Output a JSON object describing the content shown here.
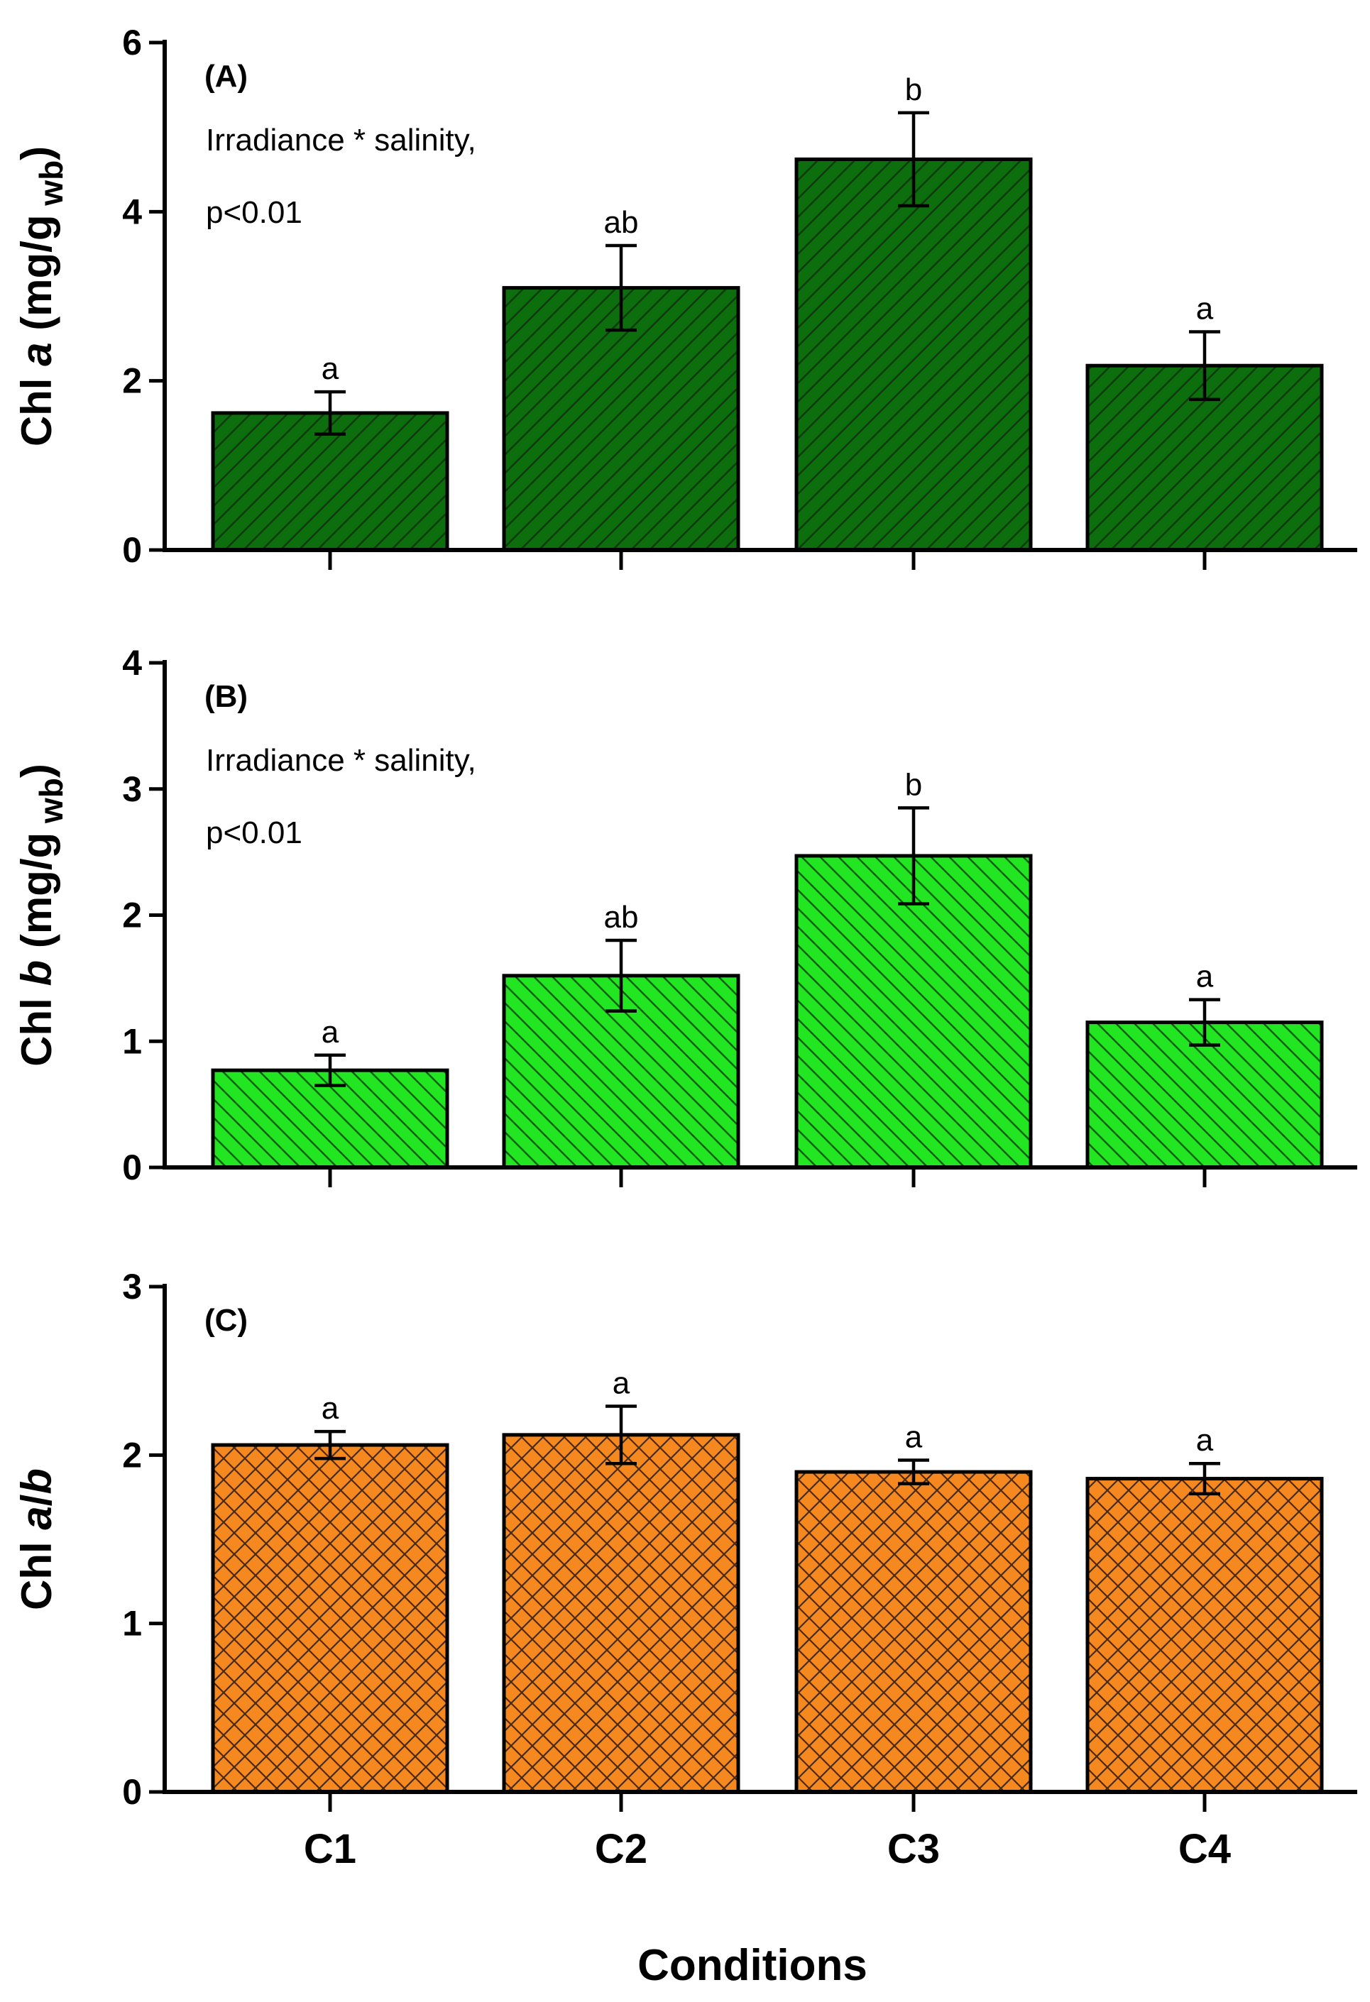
{
  "chart_data": [
    {
      "type": "bar",
      "panel_label": "(A)",
      "annotation_line1": "Irradiance * salinity,",
      "annotation_line2": "p<0.01",
      "ylabel_prefix": "Chl ",
      "ylabel_italic": "a",
      "ylabel_unit": " (mg/g",
      "ylabel_sub": " wb",
      "ylabel_close": ")",
      "categories": [
        "C1",
        "C2",
        "C3",
        "C4"
      ],
      "values": [
        1.62,
        3.1,
        4.62,
        2.18
      ],
      "errors": [
        0.25,
        0.5,
        0.55,
        0.4
      ],
      "significance": [
        "a",
        "ab",
        "b",
        "a"
      ],
      "ylim": [
        0,
        6
      ],
      "yticks": [
        0,
        2,
        4,
        6
      ],
      "fill_color": "#0d6e0d",
      "pattern": "diag-up"
    },
    {
      "type": "bar",
      "panel_label": "(B)",
      "annotation_line1": "Irradiance * salinity,",
      "annotation_line2": "p<0.01",
      "ylabel_prefix": "Chl ",
      "ylabel_italic": "b",
      "ylabel_unit": " (mg/g",
      "ylabel_sub": " wb",
      "ylabel_close": ")",
      "categories": [
        "C1",
        "C2",
        "C3",
        "C4"
      ],
      "values": [
        0.77,
        1.52,
        2.47,
        1.15
      ],
      "errors": [
        0.12,
        0.28,
        0.38,
        0.18
      ],
      "significance": [
        "a",
        "ab",
        "b",
        "a"
      ],
      "ylim": [
        0,
        4
      ],
      "yticks": [
        0,
        1,
        2,
        3,
        4
      ],
      "fill_color": "#22e622",
      "pattern": "diag-down"
    },
    {
      "type": "bar",
      "panel_label": "(C)",
      "annotation_line1": "",
      "annotation_line2": "",
      "ylabel_prefix": "Chl ",
      "ylabel_italic": "a",
      "ylabel_unit": "/",
      "ylabel_sub": "",
      "ylabel_close": "",
      "ylabel_italic2": "b",
      "categories": [
        "C1",
        "C2",
        "C3",
        "C4"
      ],
      "values": [
        2.06,
        2.12,
        1.9,
        1.86
      ],
      "errors": [
        0.08,
        0.17,
        0.07,
        0.09
      ],
      "significance": [
        "a",
        "a",
        "a",
        "a"
      ],
      "ylim": [
        0,
        3
      ],
      "yticks": [
        0,
        1,
        2,
        3
      ],
      "fill_color": "#f5881e",
      "pattern": "cross"
    }
  ],
  "xlabel": "Conditions"
}
